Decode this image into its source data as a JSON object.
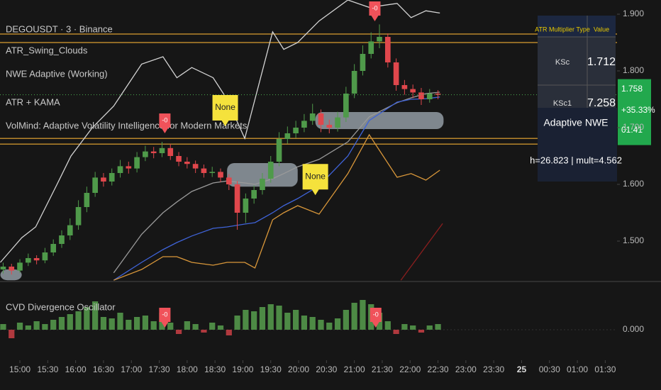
{
  "header": {
    "symbol": "DEGOUSDT · 3 · Binance",
    "indicators": [
      "ATR_Swing_Clouds",
      "NWE Adaptive (Working)",
      "ATR + KAMA",
      "VolMind: Adaptive Volatility Intelligence for Modern Markets"
    ]
  },
  "chart_data": {
    "type": "candlestick",
    "up_color": "#4f9a4a",
    "down_color": "#e0474c",
    "x": [
      -18,
      -9,
      0,
      9,
      18,
      27,
      36,
      45,
      54,
      63,
      72,
      81,
      90,
      99,
      108,
      117,
      126,
      135,
      144,
      153,
      162,
      171,
      180,
      189,
      198,
      207,
      216,
      225,
      234,
      243,
      252,
      261,
      270,
      279,
      288,
      297,
      306,
      315,
      324,
      333,
      342,
      351,
      360,
      369,
      378,
      387,
      396,
      405,
      414,
      423,
      432,
      441,
      450
    ],
    "ohlc": [
      [
        1.45,
        1.462,
        1.443,
        1.455
      ],
      [
        1.455,
        1.46,
        1.441,
        1.448
      ],
      [
        1.448,
        1.468,
        1.444,
        1.462
      ],
      [
        1.462,
        1.478,
        1.456,
        1.47
      ],
      [
        1.47,
        1.475,
        1.459,
        1.466
      ],
      [
        1.466,
        1.488,
        1.461,
        1.48
      ],
      [
        1.48,
        1.503,
        1.474,
        1.495
      ],
      [
        1.495,
        1.519,
        1.488,
        1.51
      ],
      [
        1.51,
        1.54,
        1.502,
        1.528
      ],
      [
        1.528,
        1.572,
        1.52,
        1.56
      ],
      [
        1.56,
        1.596,
        1.551,
        1.585
      ],
      [
        1.585,
        1.622,
        1.578,
        1.612
      ],
      [
        1.612,
        1.62,
        1.596,
        1.605
      ],
      [
        1.605,
        1.628,
        1.598,
        1.62
      ],
      [
        1.62,
        1.643,
        1.612,
        1.632
      ],
      [
        1.632,
        1.64,
        1.619,
        1.628
      ],
      [
        1.628,
        1.657,
        1.621,
        1.648
      ],
      [
        1.648,
        1.668,
        1.641,
        1.658
      ],
      [
        1.658,
        1.666,
        1.646,
        1.655
      ],
      [
        1.655,
        1.675,
        1.648,
        1.664
      ],
      [
        1.664,
        1.671,
        1.643,
        1.65
      ],
      [
        1.65,
        1.657,
        1.632,
        1.64
      ],
      [
        1.64,
        1.648,
        1.628,
        1.636
      ],
      [
        1.636,
        1.642,
        1.62,
        1.628
      ],
      [
        1.628,
        1.635,
        1.612,
        1.62
      ],
      [
        1.62,
        1.631,
        1.613,
        1.622
      ],
      [
        1.622,
        1.628,
        1.604,
        1.612
      ],
      [
        1.612,
        1.618,
        1.59,
        1.6
      ],
      [
        1.6,
        1.606,
        1.52,
        1.55
      ],
      [
        1.55,
        1.584,
        1.532,
        1.575
      ],
      [
        1.575,
        1.598,
        1.566,
        1.59
      ],
      [
        1.59,
        1.62,
        1.582,
        1.61
      ],
      [
        1.61,
        1.65,
        1.603,
        1.64
      ],
      [
        1.64,
        1.692,
        1.632,
        1.68
      ],
      [
        1.68,
        1.702,
        1.672,
        1.69
      ],
      [
        1.69,
        1.712,
        1.682,
        1.7
      ],
      [
        1.7,
        1.724,
        1.692,
        1.712
      ],
      [
        1.712,
        1.742,
        1.705,
        1.725
      ],
      [
        1.725,
        1.732,
        1.692,
        1.705
      ],
      [
        1.705,
        1.714,
        1.69,
        1.7
      ],
      [
        1.7,
        1.728,
        1.693,
        1.718
      ],
      [
        1.718,
        1.772,
        1.71,
        1.76
      ],
      [
        1.76,
        1.812,
        1.752,
        1.8
      ],
      [
        1.8,
        1.845,
        1.792,
        1.83
      ],
      [
        1.83,
        1.868,
        1.822,
        1.852
      ],
      [
        1.852,
        1.882,
        1.84,
        1.86
      ],
      [
        1.86,
        1.866,
        1.806,
        1.815
      ],
      [
        1.815,
        1.822,
        1.765,
        1.775
      ],
      [
        1.775,
        1.784,
        1.758,
        1.768
      ],
      [
        1.768,
        1.776,
        1.752,
        1.762
      ],
      [
        1.762,
        1.77,
        1.74,
        1.75
      ],
      [
        1.75,
        1.768,
        1.744,
        1.76
      ],
      [
        1.76,
        1.766,
        1.75,
        1.758
      ]
    ],
    "xlim": [
      -21.4,
      642.7
    ],
    "xticks": [
      {
        "value": 0,
        "label": "15:00"
      },
      {
        "value": 30,
        "label": "15:30"
      },
      {
        "value": 60,
        "label": "16:00"
      },
      {
        "value": 90,
        "label": "16:30"
      },
      {
        "value": 120,
        "label": "17:00"
      },
      {
        "value": 150,
        "label": "17:30"
      },
      {
        "value": 180,
        "label": "18:00"
      },
      {
        "value": 210,
        "label": "18:30"
      },
      {
        "value": 240,
        "label": "19:00"
      },
      {
        "value": 270,
        "label": "19:30"
      },
      {
        "value": 300,
        "label": "20:00"
      },
      {
        "value": 330,
        "label": "20:30"
      },
      {
        "value": 360,
        "label": "21:00"
      },
      {
        "value": 390,
        "label": "21:30"
      },
      {
        "value": 420,
        "label": "22:00"
      },
      {
        "value": 450,
        "label": "22:30"
      },
      {
        "value": 480,
        "label": "23:00"
      },
      {
        "value": 510,
        "label": "23:30"
      },
      {
        "value": 540,
        "label": "25"
      },
      {
        "value": 570,
        "label": "00:30"
      },
      {
        "value": 600,
        "label": "01:00"
      },
      {
        "value": 630,
        "label": "01:30"
      }
    ],
    "ylim": [
      1.43,
      1.925
    ],
    "yticks": [
      {
        "value": 1.5,
        "label": "1.500"
      },
      {
        "value": 1.6,
        "label": "1.600"
      },
      {
        "value": 1.7,
        "label": "1.700"
      },
      {
        "value": 1.8,
        "label": "1.800"
      },
      {
        "value": 1.9,
        "label": "1.900"
      }
    ],
    "lines": [
      {
        "color": "#d4d4d4",
        "x": [
          -21,
          2,
          17,
          40,
          55,
          78,
          101,
          131,
          154,
          169,
          185,
          208,
          223,
          242,
          253,
          272,
          284,
          299,
          322,
          353,
          376,
          406,
          421,
          437,
          452
        ],
        "values": [
          1.4625,
          1.506,
          1.525,
          1.6,
          1.65,
          1.7,
          1.738,
          1.812,
          1.825,
          1.788,
          1.806,
          1.788,
          1.75,
          1.681,
          1.75,
          1.869,
          1.838,
          1.85,
          1.888,
          1.925,
          1.912,
          1.919,
          1.894,
          1.906,
          1.902
        ]
      },
      {
        "color": "#9a9a9a",
        "x": [
          101,
          131,
          154,
          169,
          185,
          208,
          223,
          242,
          253,
          272,
          284,
          299,
          322,
          353,
          376,
          406,
          421,
          437,
          452
        ],
        "values": [
          1.444,
          1.512,
          1.55,
          1.569,
          1.5875,
          1.6025,
          1.606,
          1.6025,
          1.6,
          1.61,
          1.619,
          1.631,
          1.644,
          1.675,
          1.719,
          1.744,
          1.7525,
          1.76,
          1.7625
        ]
      },
      {
        "color": "#3f63d8",
        "x": [
          101,
          131,
          154,
          169,
          185,
          208,
          223,
          242,
          253,
          272,
          284,
          299,
          322,
          353,
          376,
          406,
          421,
          437,
          452
        ],
        "values": [
          1.431,
          1.4625,
          1.485,
          1.4975,
          1.509,
          1.5225,
          1.525,
          1.53,
          1.5325,
          1.55,
          1.5625,
          1.575,
          1.5975,
          1.65,
          1.7125,
          1.745,
          1.75,
          1.751,
          1.754
        ]
      },
      {
        "color": "#d9973a",
        "x": [
          101,
          131,
          154,
          169,
          185,
          208,
          223,
          242,
          253,
          272,
          284,
          299,
          322,
          353,
          376,
          406,
          421,
          437,
          452
        ],
        "values": [
          1.431,
          1.45,
          1.4725,
          1.4725,
          1.4625,
          1.4575,
          1.4625,
          1.4625,
          1.4525,
          1.5375,
          1.55,
          1.5625,
          1.5475,
          1.619,
          1.6875,
          1.6125,
          1.619,
          1.6075,
          1.625
        ]
      },
      {
        "color": "#8b1e1e",
        "x": [
          410,
          455
        ],
        "values": [
          1.431,
          1.531
        ]
      }
    ],
    "levels": [
      1.865,
      1.85,
      1.681,
      1.671
    ],
    "level_color": "#b8862b",
    "clouds": [
      {
        "x": [
          -21,
          2
        ],
        "values": [
          1.431,
          1.45
        ]
      },
      {
        "x": [
          223,
          299
        ],
        "values": [
          1.596,
          1.6375
        ]
      },
      {
        "x": [
          318,
          456
        ],
        "values": [
          1.6975,
          1.7275
        ]
      }
    ],
    "signals": [
      {
        "x": 156,
        "value": 1.69,
        "label": "-0"
      },
      {
        "x": 382,
        "value": 1.8875,
        "label": "-0"
      }
    ],
    "notes": [
      {
        "x": 221,
        "value": 1.7025,
        "label": "None"
      },
      {
        "x": 318,
        "value": 1.581,
        "label": "None"
      }
    ],
    "last_price": 1.758,
    "change": "+35.33%",
    "countdown": "01:41",
    "oscillator": {
      "title": "CVD Divergence Oscillator",
      "ylim": [
        -1.5,
        3
      ],
      "yticks": [
        {
          "value": 0,
          "label": "0.000"
        }
      ],
      "values": [
        0.4,
        -0.6,
        0.5,
        0.3,
        0.6,
        0.4,
        0.7,
        0.9,
        1.1,
        1.3,
        1.6,
        2.0,
        0.9,
        0.8,
        1.2,
        0.7,
        0.9,
        1.0,
        0.6,
        1.2,
        0.5,
        -0.3,
        0.6,
        0.4,
        -0.2,
        0.5,
        0.3,
        -0.4,
        1.0,
        1.4,
        1.3,
        1.6,
        1.8,
        1.7,
        1.2,
        1.4,
        1.0,
        0.9,
        0.7,
        0.5,
        0.8,
        1.4,
        1.9,
        2.1,
        1.8,
        1.2,
        0.6,
        -0.3,
        0.4,
        0.3,
        -0.2,
        0.3,
        0.4
      ],
      "signals": [
        {
          "x": 156,
          "label": "-0"
        },
        {
          "x": 383,
          "label": "-0"
        }
      ]
    }
  },
  "table": {
    "header": [
      "ATR Multiplier Type",
      "Value"
    ],
    "rows": [
      [
        "KSc",
        "1.712"
      ],
      [
        "KSc1",
        "7.258"
      ]
    ]
  },
  "nwe_box": {
    "title": "Adaptive NWE",
    "text": "h=26.823 | mult=4.562"
  }
}
